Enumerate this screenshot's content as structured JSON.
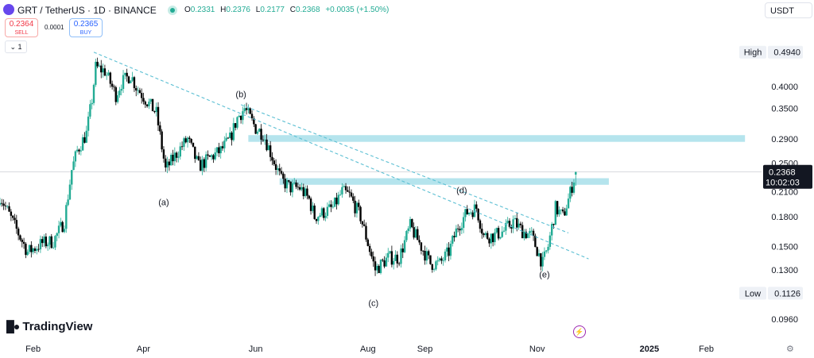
{
  "header": {
    "title": "GRT / TetherUS · 1D · BINANCE",
    "ohlc": [
      {
        "label": "O",
        "value": "0.2331"
      },
      {
        "label": "H",
        "value": "0.2376"
      },
      {
        "label": "L",
        "value": "0.2177"
      },
      {
        "label": "C",
        "value": "0.2368"
      }
    ],
    "change": "+0.0035 (+1.50%)",
    "currency": "USDT"
  },
  "orders": {
    "sell_price": "0.2364",
    "sell_label": "SELL",
    "buy_price": "0.2365",
    "buy_label": "BUY",
    "spread": "0.0001"
  },
  "collapse_label": "1",
  "branding": {
    "logo": "TradingView"
  },
  "colors": {
    "up": "#22ab94",
    "down": "#000000",
    "zone": "#a8dfea",
    "trend": "#5bbfd3",
    "price_label": "#131722"
  },
  "chart_data": {
    "type": "candlestick",
    "yscale": "log",
    "ylim": [
      0.088,
      0.56
    ],
    "x_range": [
      "2024-01-14",
      "2025-03-03"
    ],
    "x_ticks": [
      {
        "date": "2024-02-01",
        "label": "Feb",
        "bold": false
      },
      {
        "date": "2024-04-01",
        "label": "Apr",
        "bold": false
      },
      {
        "date": "2024-06-01",
        "label": "Jun",
        "bold": false
      },
      {
        "date": "2024-08-01",
        "label": "Aug",
        "bold": false
      },
      {
        "date": "2024-09-01",
        "label": "Sep",
        "bold": false
      },
      {
        "date": "2024-11-01",
        "label": "Nov",
        "bold": false
      },
      {
        "date": "2025-01-01",
        "label": "2025",
        "bold": true
      },
      {
        "date": "2025-02-01",
        "label": "Feb",
        "bold": false
      }
    ],
    "y_ticks": [
      "0.4000",
      "0.3500",
      "0.2900",
      "0.2500",
      "0.2100",
      "0.1800",
      "0.1500",
      "0.1300",
      "0.0960"
    ],
    "high_label": "High",
    "high_value": "0.4940",
    "low_label": "Low",
    "low_value": "0.1126",
    "last_price": "0.2368",
    "countdown": "10:02:03",
    "zones": [
      {
        "from": "2024-05-28",
        "to": "2025-02-22",
        "low": 0.285,
        "high": 0.297
      },
      {
        "from": "2024-06-14",
        "to": "2024-12-10",
        "low": 0.219,
        "high": 0.228
      }
    ],
    "trendlines": [
      {
        "from": [
          "2024-03-05",
          0.494
        ],
        "to": [
          "2024-11-29",
          0.139
        ]
      },
      {
        "from": [
          "2024-05-24",
          0.358
        ],
        "to": [
          "2024-11-18",
          0.163
        ]
      }
    ],
    "wave_labels": [
      {
        "label": "(a)",
        "date": "2024-04-12",
        "price": 0.193
      },
      {
        "label": "(b)",
        "date": "2024-05-24",
        "price": 0.375
      },
      {
        "label": "(c)",
        "date": "2024-08-04",
        "price": 0.104
      },
      {
        "label": "(d)",
        "date": "2024-09-21",
        "price": 0.208
      },
      {
        "label": "(e)",
        "date": "2024-11-05",
        "price": 0.124
      }
    ],
    "waypoints": [
      [
        "2024-01-14",
        0.205
      ],
      [
        "2024-01-22",
        0.17
      ],
      [
        "2024-01-29",
        0.145
      ],
      [
        "2024-02-06",
        0.153
      ],
      [
        "2024-02-12",
        0.155
      ],
      [
        "2024-02-18",
        0.175
      ],
      [
        "2024-02-22",
        0.24
      ],
      [
        "2024-02-25",
        0.27
      ],
      [
        "2024-03-01",
        0.3
      ],
      [
        "2024-03-04",
        0.37
      ],
      [
        "2024-03-06",
        0.45
      ],
      [
        "2024-03-11",
        0.44
      ],
      [
        "2024-03-17",
        0.38
      ],
      [
        "2024-03-20",
        0.41
      ],
      [
        "2024-03-25",
        0.43
      ],
      [
        "2024-03-28",
        0.4
      ],
      [
        "2024-04-04",
        0.36
      ],
      [
        "2024-04-08",
        0.34
      ],
      [
        "2024-04-13",
        0.24
      ],
      [
        "2024-04-20",
        0.27
      ],
      [
        "2024-04-25",
        0.29
      ],
      [
        "2024-05-01",
        0.245
      ],
      [
        "2024-05-08",
        0.26
      ],
      [
        "2024-05-13",
        0.27
      ],
      [
        "2024-05-18",
        0.29
      ],
      [
        "2024-05-22",
        0.33
      ],
      [
        "2024-05-26",
        0.35
      ],
      [
        "2024-06-01",
        0.31
      ],
      [
        "2024-06-05",
        0.3
      ],
      [
        "2024-06-10",
        0.26
      ],
      [
        "2024-06-15",
        0.225
      ],
      [
        "2024-06-20",
        0.215
      ],
      [
        "2024-06-25",
        0.215
      ],
      [
        "2024-06-30",
        0.2
      ],
      [
        "2024-07-03",
        0.18
      ],
      [
        "2024-07-08",
        0.185
      ],
      [
        "2024-07-13",
        0.19
      ],
      [
        "2024-07-18",
        0.21
      ],
      [
        "2024-07-22",
        0.205
      ],
      [
        "2024-07-28",
        0.18
      ],
      [
        "2024-08-05",
        0.13
      ],
      [
        "2024-08-12",
        0.14
      ],
      [
        "2024-08-18",
        0.14
      ],
      [
        "2024-08-24",
        0.17
      ],
      [
        "2024-08-30",
        0.15
      ],
      [
        "2024-09-04",
        0.135
      ],
      [
        "2024-09-09",
        0.135
      ],
      [
        "2024-09-14",
        0.145
      ],
      [
        "2024-09-19",
        0.17
      ],
      [
        "2024-09-24",
        0.185
      ],
      [
        "2024-09-29",
        0.19
      ],
      [
        "2024-10-03",
        0.16
      ],
      [
        "2024-10-08",
        0.16
      ],
      [
        "2024-10-14",
        0.165
      ],
      [
        "2024-10-19",
        0.175
      ],
      [
        "2024-10-24",
        0.165
      ],
      [
        "2024-10-29",
        0.16
      ],
      [
        "2024-11-04",
        0.135
      ],
      [
        "2024-11-07",
        0.15
      ],
      [
        "2024-11-11",
        0.19
      ],
      [
        "2024-11-15",
        0.18
      ],
      [
        "2024-11-18",
        0.2
      ],
      [
        "2024-11-22",
        0.2368
      ]
    ]
  }
}
